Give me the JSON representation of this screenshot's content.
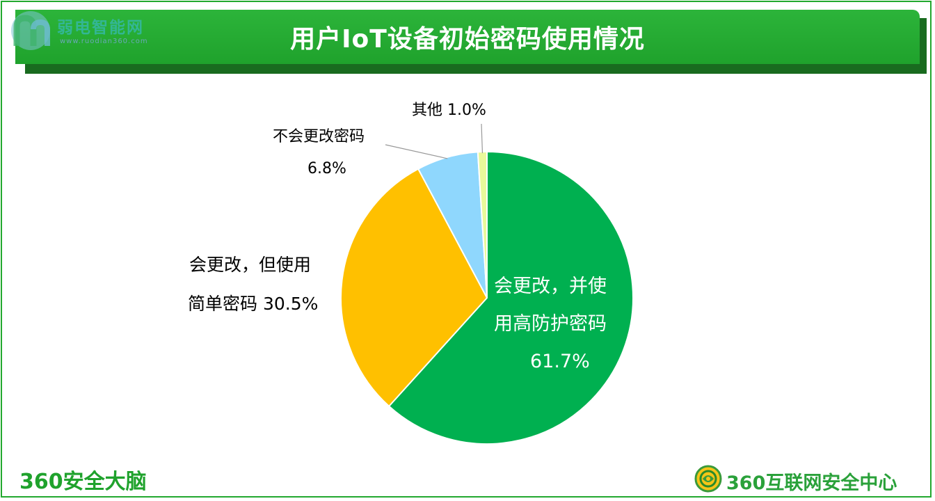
{
  "title": "用户IoT设备初始密码使用情况",
  "watermark": {
    "name": "弱电智能网",
    "url": "www.ruodian360.com"
  },
  "footer": {
    "left_brand": "360安全大脑",
    "right_brand": "360互联网安全中心",
    "right_icon": "360-safeguard-logo-icon"
  },
  "chart_data": {
    "type": "pie",
    "title": "用户IoT设备初始密码使用情况",
    "start": "12 o'clock",
    "direction": "clockwise",
    "slices": [
      {
        "label_line1": "会更改，并使",
        "label_line2": "用高防护密码",
        "label_line3": "61.7%",
        "value": 61.7,
        "color": "#00b050"
      },
      {
        "label_line1": "会更改，但使用",
        "label_line2": "简单密码 30.5%",
        "value": 30.5,
        "color": "#ffc000"
      },
      {
        "label_line1": "不会更改密码",
        "label_line2": "6.8%",
        "value": 6.8,
        "color": "#8fd7fd"
      },
      {
        "label_line1": "其他 1.0%",
        "value": 1.0,
        "color": "#e9f99a"
      }
    ]
  },
  "colors": {
    "title_bar": "#22a82e",
    "frame": "#22a82e"
  }
}
